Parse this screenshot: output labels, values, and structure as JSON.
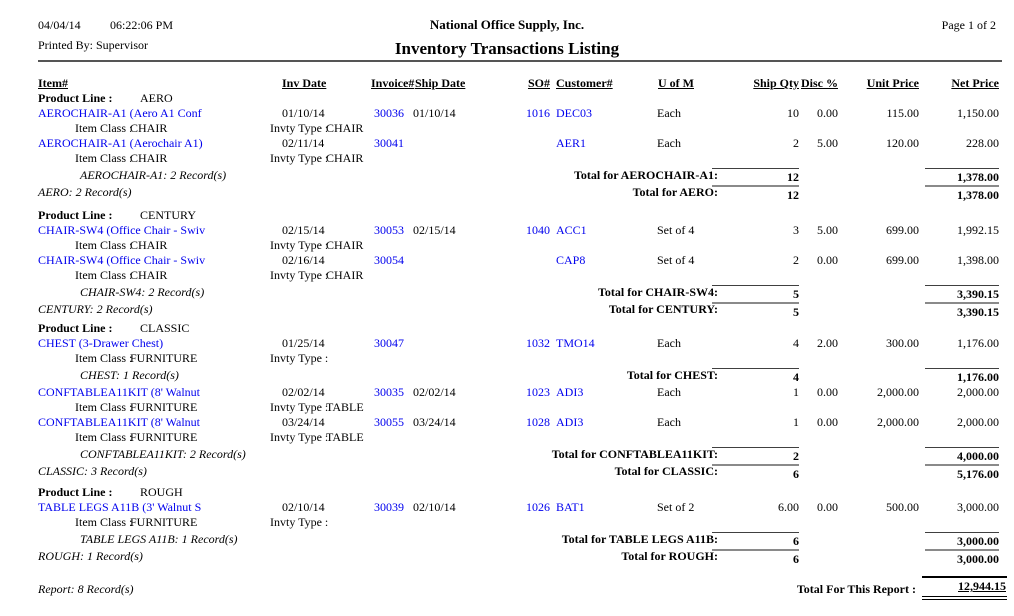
{
  "page": {
    "date": "04/04/14",
    "time": "06:22:06 PM",
    "company": "National Office Supply, Inc.",
    "page_number": "Page 1 of 2",
    "printed_by": "Printed By: Supervisor",
    "title": "Inventory Transactions Listing"
  },
  "columns": {
    "item": "Item#",
    "inv_date": "Inv Date",
    "invoice": "Invoice#",
    "ship_date": "Ship Date",
    "so": "SO#",
    "customer": "Customer#",
    "uofm": "U of M",
    "ship_qty": "Ship Qty",
    "disc": "Disc %",
    "unit_price": "Unit Price",
    "net_price": "Net Price"
  },
  "labels": {
    "product_line": "Product Line :",
    "item_class": "Item Class :",
    "invty_type": "Invty Type :"
  },
  "colors": {
    "link_blue": "#0000EE",
    "text": "#000000",
    "section_rule_gray": "#8a8a8a"
  },
  "sections": [
    {
      "product_line": "AERO",
      "groups": [
        {
          "transactions": [
            {
              "name": "AEROCHAIR-A1 (Aero A1 Conf",
              "inv_date": "01/10/14",
              "invoice": "30036",
              "ship_date": "01/10/14",
              "so": "1016",
              "customer": "DEC03",
              "uofm": "Each",
              "qty": "10",
              "disc": "0.00",
              "unit": "115.00",
              "net": "1,150.00",
              "item_class": "CHAIR",
              "invty_type": "CHAIR"
            },
            {
              "name": "AEROCHAIR-A1 (Aerochair A1)",
              "inv_date": "02/11/14",
              "invoice": "30041",
              "ship_date": "",
              "so": "",
              "customer": "AER1",
              "uofm": "Each",
              "qty": "2",
              "disc": "5.00",
              "unit": "120.00",
              "net": "228.00",
              "item_class": "CHAIR",
              "invty_type": "CHAIR"
            }
          ],
          "group_records": "AEROCHAIR-A1: 2 Record(s)",
          "group_total_label": "Total for AEROCHAIR-A1:",
          "group_qty": "12",
          "group_net": "1,378.00"
        }
      ],
      "section_records": "AERO: 2 Record(s)",
      "section_total_label": "Total for AERO:",
      "section_qty": "12",
      "section_net": "1,378.00"
    },
    {
      "product_line": "CENTURY",
      "groups": [
        {
          "transactions": [
            {
              "name": "CHAIR-SW4 (Office Chair - Swiv",
              "inv_date": "02/15/14",
              "invoice": "30053",
              "ship_date": "02/15/14",
              "so": "1040",
              "customer": "ACC1",
              "uofm": "Set of 4",
              "qty": "3",
              "disc": "5.00",
              "unit": "699.00",
              "net": "1,992.15",
              "item_class": "CHAIR",
              "invty_type": "CHAIR"
            },
            {
              "name": "CHAIR-SW4 (Office Chair - Swiv",
              "inv_date": "02/16/14",
              "invoice": "30054",
              "ship_date": "",
              "so": "",
              "customer": "CAP8",
              "uofm": "Set of 4",
              "qty": "2",
              "disc": "0.00",
              "unit": "699.00",
              "net": "1,398.00",
              "item_class": "CHAIR",
              "invty_type": "CHAIR"
            }
          ],
          "group_records": "CHAIR-SW4: 2 Record(s)",
          "group_total_label": "Total for CHAIR-SW4:",
          "group_qty": "5",
          "group_net": "3,390.15"
        }
      ],
      "section_records": "CENTURY: 2 Record(s)",
      "section_total_label": "Total for CENTURY:",
      "section_qty": "5",
      "section_net": "3,390.15"
    },
    {
      "product_line": "CLASSIC",
      "groups": [
        {
          "transactions": [
            {
              "name": "CHEST (3-Drawer Chest)",
              "inv_date": "01/25/14",
              "invoice": "30047",
              "ship_date": "",
              "so": "1032",
              "customer": "TMO14",
              "uofm": "Each",
              "qty": "4",
              "disc": "2.00",
              "unit": "300.00",
              "net": "1,176.00",
              "item_class": "FURNITURE",
              "invty_type": ""
            }
          ],
          "group_records": "CHEST: 1 Record(s)",
          "group_total_label": "Total for CHEST:",
          "group_qty": "4",
          "group_net": "1,176.00"
        },
        {
          "transactions": [
            {
              "name": "CONFTABLEA11KIT (8' Walnut",
              "inv_date": "02/02/14",
              "invoice": "30035",
              "ship_date": "02/02/14",
              "so": "1023",
              "customer": "ADI3",
              "uofm": "Each",
              "qty": "1",
              "disc": "0.00",
              "unit": "2,000.00",
              "net": "2,000.00",
              "item_class": "FURNITURE",
              "invty_type": "TABLE"
            },
            {
              "name": "CONFTABLEA11KIT (8' Walnut",
              "inv_date": "03/24/14",
              "invoice": "30055",
              "ship_date": "03/24/14",
              "so": "1028",
              "customer": "ADI3",
              "uofm": "Each",
              "qty": "1",
              "disc": "0.00",
              "unit": "2,000.00",
              "net": "2,000.00",
              "item_class": "FURNITURE",
              "invty_type": "TABLE"
            }
          ],
          "group_records": "CONFTABLEA11KIT: 2 Record(s)",
          "group_total_label": "Total for CONFTABLEA11KIT:",
          "group_qty": "2",
          "group_net": "4,000.00"
        }
      ],
      "section_records": "CLASSIC: 3 Record(s)",
      "section_total_label": "Total for CLASSIC:",
      "section_qty": "6",
      "section_net": "5,176.00"
    },
    {
      "product_line": "ROUGH",
      "groups": [
        {
          "transactions": [
            {
              "name": "TABLE LEGS A11B (3' Walnut S",
              "inv_date": "02/10/14",
              "invoice": "30039",
              "ship_date": "02/10/14",
              "so": "1026",
              "customer": "BAT1",
              "uofm": "Set of 2",
              "qty": "6.00",
              "disc": "0.00",
              "unit": "500.00",
              "net": "3,000.00",
              "item_class": "FURNITURE",
              "invty_type": ""
            }
          ],
          "group_records": "TABLE LEGS A11B: 1 Record(s)",
          "group_total_label": "Total for TABLE LEGS A11B:",
          "group_qty": "6",
          "group_net": "3,000.00"
        }
      ],
      "section_records": "ROUGH: 1 Record(s)",
      "section_total_label": "Total for ROUGH:",
      "section_qty": "6",
      "section_net": "3,000.00"
    }
  ],
  "footer": {
    "report_records": "Report: 8 Record(s)",
    "total_label": "Total For This Report :",
    "total_value": "12,944.15"
  }
}
